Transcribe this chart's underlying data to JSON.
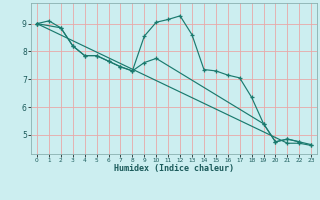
{
  "xlabel": "Humidex (Indice chaleur)",
  "bg_color": "#cceef0",
  "line_color": "#1a7a6e",
  "grid_color_h": "#e8a8a8",
  "grid_color_v": "#c8dede",
  "xlim": [
    -0.5,
    23.5
  ],
  "ylim": [
    4.3,
    9.75
  ],
  "xticks": [
    0,
    1,
    2,
    3,
    4,
    5,
    6,
    7,
    8,
    9,
    10,
    11,
    12,
    13,
    14,
    15,
    16,
    17,
    18,
    19,
    20,
    21,
    22,
    23
  ],
  "yticks": [
    5,
    6,
    7,
    8,
    9
  ],
  "line1_x": [
    0,
    1,
    2,
    3,
    4,
    5,
    6,
    7,
    8,
    9,
    10,
    11,
    12,
    13,
    14,
    15,
    16,
    17,
    18,
    19,
    20,
    21,
    22
  ],
  "line1_y": [
    9.0,
    9.1,
    8.85,
    8.2,
    7.85,
    7.85,
    7.65,
    7.45,
    7.3,
    8.55,
    9.05,
    9.15,
    9.28,
    8.6,
    7.35,
    7.3,
    7.15,
    7.05,
    6.35,
    5.4,
    4.75,
    4.85,
    4.75
  ],
  "line2_x": [
    0,
    2,
    3,
    4,
    5,
    6,
    7,
    8,
    9,
    10,
    19,
    20,
    21,
    22,
    23
  ],
  "line2_y": [
    9.0,
    8.85,
    8.2,
    7.85,
    7.85,
    7.65,
    7.45,
    7.3,
    7.6,
    7.75,
    5.4,
    4.75,
    4.85,
    4.75,
    4.65
  ],
  "line3_x": [
    0,
    21,
    22,
    23
  ],
  "line3_y": [
    9.0,
    4.7,
    4.7,
    4.62
  ]
}
